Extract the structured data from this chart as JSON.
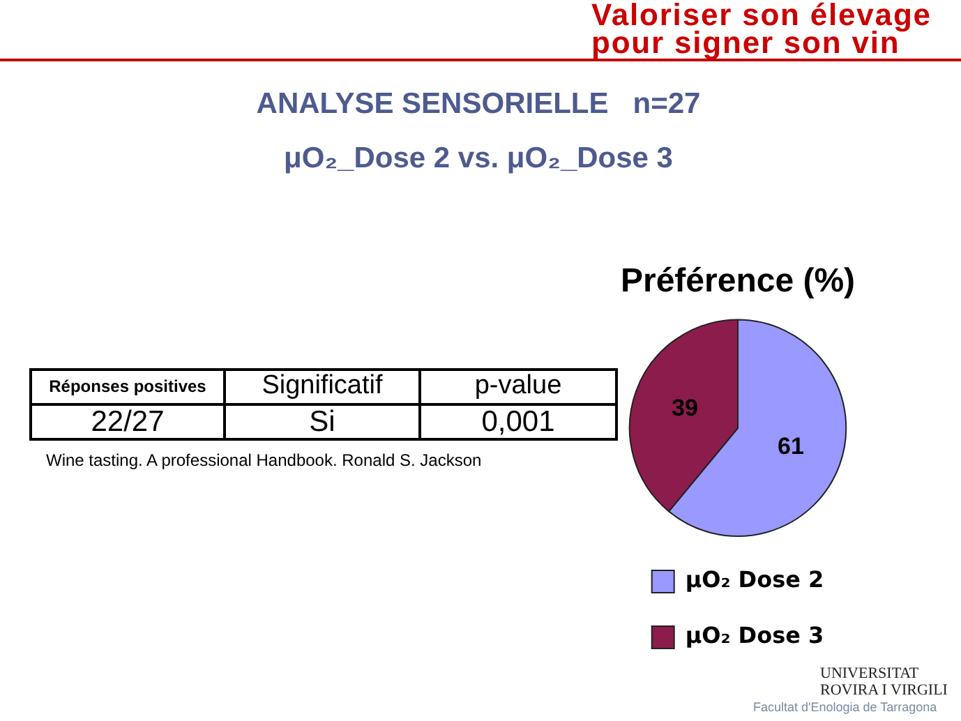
{
  "chart_data": {
    "type": "pie",
    "title": "Préférence (%)",
    "categories": [
      "μO₂ Dose 2",
      "μO₂ Dose 3"
    ],
    "values": [
      61,
      39
    ],
    "colors": [
      "#9999ff",
      "#8c1c4c"
    ],
    "data_labels": true,
    "legend": "bottom",
    "annotations": [
      "Valoriser son élevage",
      "pour signer son vin",
      "ANALYSE SENSORIELLE   n=27",
      "μO₂_Dose 2 vs. μO₂_Dose 3",
      "Réponses positives",
      "Significatif",
      "p-value",
      "22/27",
      "Si",
      "0,001",
      "Wine tasting. A professional Handbook. Ronald S. Jackson",
      "UNIVERSITAT",
      "ROVIRA I VIRGILI",
      "Facultat d'Enologia de Tarragona"
    ]
  }
}
